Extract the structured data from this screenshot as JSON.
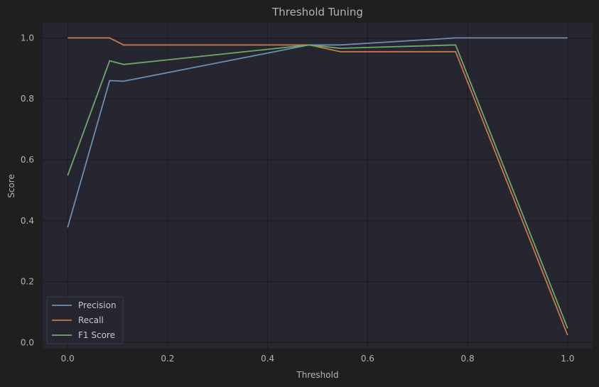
{
  "chart_data": {
    "type": "line",
    "title": "Threshold Tuning",
    "xlabel": "Threshold",
    "ylabel": "Score",
    "xlim": [
      -0.05,
      1.05
    ],
    "ylim": [
      -0.02,
      1.05
    ],
    "xticks": [
      "0.0",
      "0.2",
      "0.4",
      "0.6",
      "0.8",
      "1.0"
    ],
    "yticks": [
      "0.0",
      "0.2",
      "0.4",
      "0.6",
      "0.8",
      "1.0"
    ],
    "grid": true,
    "legend_position": "lower-left",
    "colors": {
      "background": "#1f1f1f",
      "plot_background": "#262630",
      "grid": "#1b1b1b",
      "text": "#b4b4b4"
    },
    "series": [
      {
        "name": "Precision",
        "color": "#6b8fb3",
        "x": [
          0.0,
          0.084,
          0.112,
          0.483,
          0.545,
          0.776,
          1.0
        ],
        "y": [
          0.378,
          0.86,
          0.858,
          0.977,
          0.977,
          1.0,
          1.0
        ]
      },
      {
        "name": "Recall",
        "color": "#c8784a",
        "x": [
          0.0,
          0.084,
          0.112,
          0.483,
          0.545,
          0.776,
          1.0
        ],
        "y": [
          1.0,
          1.0,
          0.977,
          0.977,
          0.955,
          0.955,
          0.024
        ]
      },
      {
        "name": "F1 Score",
        "color": "#6fa86a",
        "x": [
          0.0,
          0.084,
          0.112,
          0.483,
          0.545,
          0.776,
          1.0
        ],
        "y": [
          0.548,
          0.925,
          0.913,
          0.977,
          0.966,
          0.977,
          0.047
        ]
      }
    ]
  }
}
